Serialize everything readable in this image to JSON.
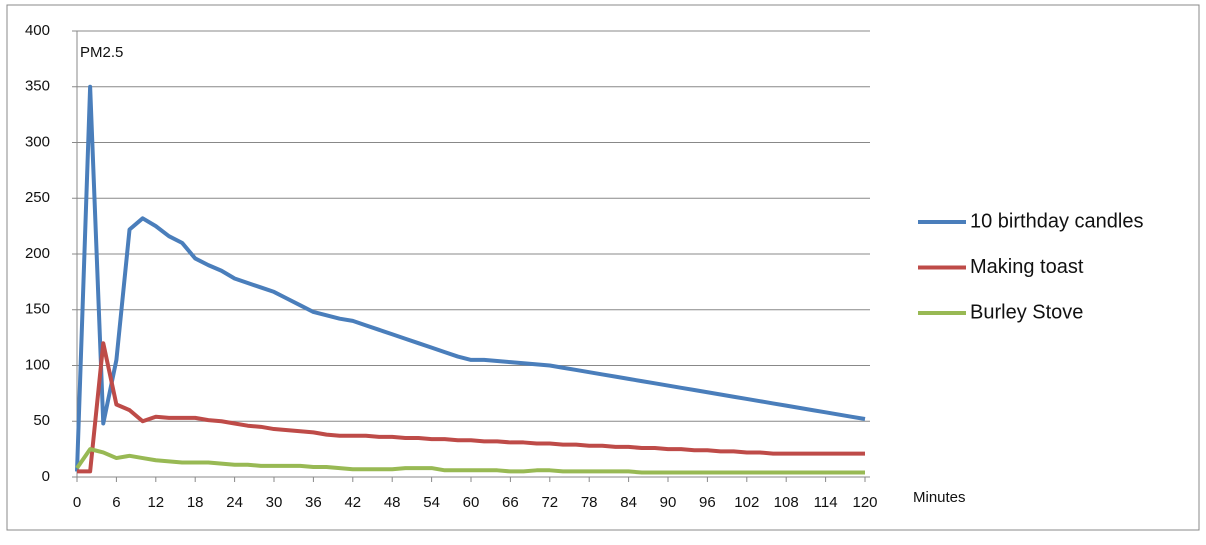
{
  "chart_data": {
    "type": "line",
    "annotation": "PM2.5",
    "x_label": "Minutes",
    "x": [
      0,
      2,
      4,
      6,
      8,
      10,
      12,
      14,
      16,
      18,
      20,
      22,
      24,
      26,
      28,
      30,
      32,
      34,
      36,
      38,
      40,
      42,
      44,
      46,
      48,
      50,
      52,
      54,
      56,
      58,
      60,
      62,
      64,
      66,
      68,
      70,
      72,
      74,
      76,
      78,
      80,
      82,
      84,
      86,
      88,
      90,
      92,
      94,
      96,
      98,
      100,
      102,
      104,
      106,
      108,
      110,
      112,
      114,
      116,
      118,
      120
    ],
    "series": [
      {
        "name": "10 birthday candles",
        "color": "#4a7ebb",
        "values": [
          5,
          350,
          48,
          105,
          222,
          232,
          225,
          216,
          210,
          196,
          190,
          185,
          178,
          174,
          170,
          166,
          160,
          154,
          148,
          145,
          142,
          140,
          136,
          132,
          128,
          124,
          120,
          116,
          112,
          108,
          105,
          105,
          104,
          103,
          102,
          101,
          100,
          98,
          96,
          94,
          92,
          90,
          88,
          86,
          84,
          82,
          80,
          78,
          76,
          74,
          72,
          70,
          68,
          66,
          64,
          62,
          60,
          58,
          56,
          54,
          52
        ]
      },
      {
        "name": "Making toast",
        "color": "#be4b48",
        "values": [
          5,
          5,
          120,
          65,
          60,
          50,
          54,
          53,
          53,
          53,
          51,
          50,
          48,
          46,
          45,
          43,
          42,
          41,
          40,
          38,
          37,
          37,
          37,
          36,
          36,
          35,
          35,
          34,
          34,
          33,
          33,
          32,
          32,
          31,
          31,
          30,
          30,
          29,
          29,
          28,
          28,
          27,
          27,
          26,
          26,
          25,
          25,
          24,
          24,
          23,
          23,
          22,
          22,
          21,
          21,
          21,
          21,
          21,
          21,
          21,
          21
        ]
      },
      {
        "name": "Burley Stove",
        "color": "#98b954",
        "values": [
          8,
          25,
          22,
          17,
          19,
          17,
          15,
          14,
          13,
          13,
          13,
          12,
          11,
          11,
          10,
          10,
          10,
          10,
          9,
          9,
          8,
          7,
          7,
          7,
          7,
          8,
          8,
          8,
          6,
          6,
          6,
          6,
          6,
          5,
          5,
          6,
          6,
          5,
          5,
          5,
          5,
          5,
          5,
          4,
          4,
          4,
          4,
          4,
          4,
          4,
          4,
          4,
          4,
          4,
          4,
          4,
          4,
          4,
          4,
          4,
          4
        ]
      }
    ],
    "xlim": [
      0,
      120
    ],
    "xticks": [
      0,
      6,
      12,
      18,
      24,
      30,
      36,
      42,
      48,
      54,
      60,
      66,
      72,
      78,
      84,
      90,
      96,
      102,
      108,
      114,
      120
    ],
    "ylim": [
      0,
      400
    ],
    "yticks": [
      0,
      50,
      100,
      150,
      200,
      250,
      300,
      350,
      400
    ],
    "grid": true,
    "legend": "right"
  }
}
